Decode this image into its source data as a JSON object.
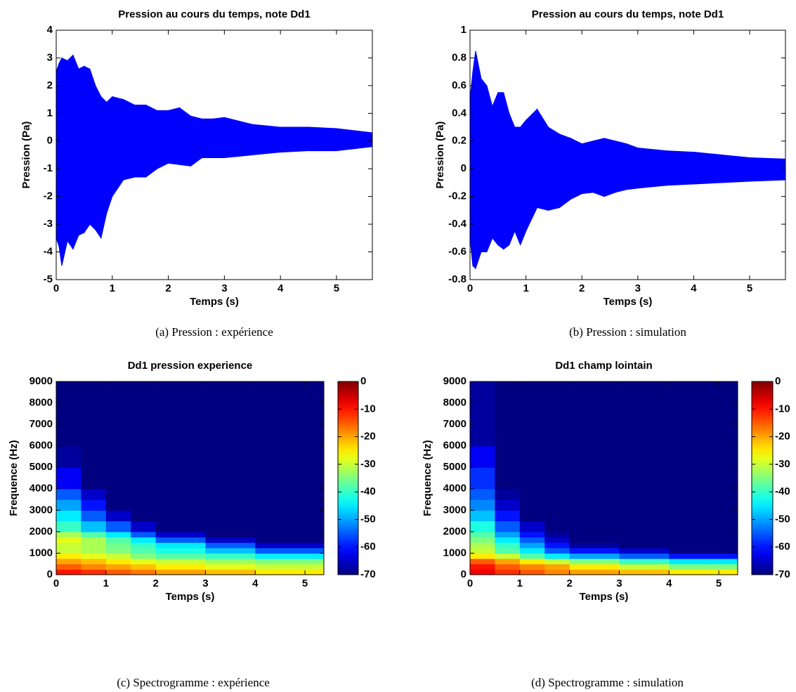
{
  "chart_data": [
    {
      "type": "band",
      "title": "Pression au cours du temps, note Dd1",
      "xlabel": "Temps (s)",
      "ylabel": "Pression (Pa)",
      "caption": "(a) Pression : expérience",
      "color": "#0000ff",
      "x": [
        0,
        0.05,
        0.1,
        0.2,
        0.3,
        0.4,
        0.5,
        0.6,
        0.7,
        0.8,
        0.9,
        1.0,
        1.2,
        1.4,
        1.6,
        1.8,
        2.0,
        2.2,
        2.4,
        2.6,
        2.8,
        3.0,
        3.5,
        4.0,
        4.5,
        5.0,
        5.64
      ],
      "upper": [
        2.5,
        2.8,
        3.0,
        2.9,
        3.1,
        2.6,
        2.7,
        2.6,
        2.0,
        1.6,
        1.4,
        1.6,
        1.5,
        1.3,
        1.3,
        1.1,
        1.1,
        1.2,
        0.9,
        0.8,
        0.8,
        0.85,
        0.6,
        0.5,
        0.5,
        0.45,
        0.3
      ],
      "lower": [
        -3.5,
        -3.8,
        -4.5,
        -3.6,
        -3.9,
        -3.4,
        -3.3,
        -3.0,
        -3.2,
        -3.5,
        -2.6,
        -2.0,
        -1.4,
        -1.3,
        -1.3,
        -1.0,
        -0.8,
        -0.85,
        -0.9,
        -0.6,
        -0.6,
        -0.6,
        -0.5,
        -0.4,
        -0.35,
        -0.35,
        -0.2
      ],
      "xlim": [
        0,
        5.64
      ],
      "ylim": [
        -5,
        4
      ],
      "xticks": [
        0,
        1,
        2,
        3,
        4,
        5
      ],
      "yticks": [
        -5,
        -4,
        -3,
        -2,
        -1,
        0,
        1,
        2,
        3,
        4
      ]
    },
    {
      "type": "band",
      "title": "Pression au cours du temps, note Dd1",
      "xlabel": "Temps (s)",
      "ylabel": "Pression (Pa)",
      "caption": "(b) Pression : simulation",
      "color": "#0000ff",
      "x": [
        0,
        0.05,
        0.1,
        0.2,
        0.3,
        0.4,
        0.5,
        0.6,
        0.7,
        0.8,
        0.9,
        1.0,
        1.2,
        1.4,
        1.6,
        1.8,
        2.0,
        2.2,
        2.4,
        2.6,
        2.8,
        3.0,
        3.5,
        4.0,
        4.5,
        5.0,
        5.64
      ],
      "upper": [
        0.5,
        0.7,
        0.85,
        0.65,
        0.6,
        0.45,
        0.55,
        0.55,
        0.4,
        0.3,
        0.3,
        0.35,
        0.43,
        0.3,
        0.25,
        0.22,
        0.18,
        0.2,
        0.22,
        0.2,
        0.18,
        0.15,
        0.13,
        0.12,
        0.1,
        0.08,
        0.07
      ],
      "lower": [
        -0.5,
        -0.7,
        -0.72,
        -0.6,
        -0.6,
        -0.5,
        -0.55,
        -0.58,
        -0.55,
        -0.45,
        -0.55,
        -0.45,
        -0.28,
        -0.3,
        -0.28,
        -0.22,
        -0.18,
        -0.17,
        -0.2,
        -0.17,
        -0.15,
        -0.14,
        -0.12,
        -0.11,
        -0.1,
        -0.09,
        -0.08
      ],
      "xlim": [
        0,
        5.64
      ],
      "ylim": [
        -0.8,
        1
      ],
      "xticks": [
        0,
        1,
        2,
        3,
        4,
        5
      ],
      "yticks": [
        -0.8,
        -0.6,
        -0.4,
        -0.2,
        0,
        0.2,
        0.4,
        0.6,
        0.8,
        1
      ]
    },
    {
      "type": "heatmap",
      "title": "Dd1 pression  experience",
      "xlabel": "Temps (s)",
      "ylabel": "Frequence (Hz)",
      "caption": "(c) Spectrogramme : expérience",
      "colormap": "jet",
      "x_edges": [
        0,
        0.5,
        1,
        1.5,
        2,
        3,
        4,
        5.38
      ],
      "y_edges": [
        0,
        250,
        500,
        750,
        1000,
        1250,
        1500,
        1750,
        2000,
        2500,
        3000,
        3500,
        4000,
        5000,
        6000,
        9000
      ],
      "z": [
        [
          -10,
          -12,
          -15,
          -17,
          -20,
          -22,
          -25
        ],
        [
          -15,
          -18,
          -20,
          -22,
          -25,
          -28,
          -30
        ],
        [
          -20,
          -22,
          -25,
          -28,
          -30,
          -33,
          -35
        ],
        [
          -25,
          -28,
          -30,
          -35,
          -38,
          -40,
          -45
        ],
        [
          -30,
          -32,
          -35,
          -38,
          -42,
          -48,
          -55
        ],
        [
          -30,
          -32,
          -36,
          -40,
          -45,
          -55,
          -65
        ],
        [
          -28,
          -32,
          -38,
          -45,
          -55,
          -65,
          -70
        ],
        [
          -32,
          -38,
          -45,
          -55,
          -65,
          -70,
          -70
        ],
        [
          -40,
          -48,
          -55,
          -65,
          -70,
          -70,
          -70
        ],
        [
          -45,
          -55,
          -65,
          -70,
          -70,
          -70,
          -70
        ],
        [
          -50,
          -60,
          -70,
          -70,
          -70,
          -70,
          -70
        ],
        [
          -55,
          -65,
          -70,
          -70,
          -70,
          -70,
          -70
        ],
        [
          -62,
          -70,
          -70,
          -70,
          -70,
          -70,
          -70
        ],
        [
          -68,
          -70,
          -70,
          -70,
          -70,
          -70,
          -70
        ],
        [
          -70,
          -70,
          -70,
          -70,
          -70,
          -70,
          -70
        ]
      ],
      "xlim": [
        0,
        5.38
      ],
      "ylim": [
        0,
        9000
      ],
      "xticks": [
        0,
        1,
        2,
        3,
        4,
        5
      ],
      "yticks": [
        0,
        1000,
        2000,
        3000,
        4000,
        5000,
        6000,
        7000,
        8000,
        9000
      ],
      "clim": [
        -70,
        0
      ],
      "cticks": [
        -70,
        -60,
        -50,
        -40,
        -30,
        -20,
        -10,
        0
      ]
    },
    {
      "type": "heatmap",
      "title": "Dd1 champ lointain",
      "xlabel": "Temps (s)",
      "ylabel": "Frequence (Hz)",
      "caption": "(d) Spectrogramme : simulation",
      "colormap": "jet",
      "x_edges": [
        0,
        0.5,
        1,
        1.5,
        2,
        3,
        4,
        5.38
      ],
      "y_edges": [
        0,
        250,
        500,
        750,
        1000,
        1250,
        1500,
        1750,
        2000,
        2500,
        3000,
        3500,
        4000,
        5000,
        6000,
        9000
      ],
      "z": [
        [
          -8,
          -12,
          -15,
          -18,
          -20,
          -22,
          -25
        ],
        [
          -10,
          -15,
          -18,
          -20,
          -25,
          -30,
          -35
        ],
        [
          -15,
          -20,
          -25,
          -30,
          -35,
          -40,
          -45
        ],
        [
          -25,
          -30,
          -38,
          -45,
          -50,
          -55,
          -60
        ],
        [
          -30,
          -38,
          -45,
          -55,
          -60,
          -65,
          -70
        ],
        [
          -32,
          -40,
          -50,
          -60,
          -68,
          -70,
          -70
        ],
        [
          -35,
          -45,
          -55,
          -65,
          -70,
          -70,
          -70
        ],
        [
          -38,
          -50,
          -60,
          -68,
          -70,
          -70,
          -70
        ],
        [
          -42,
          -55,
          -65,
          -70,
          -70,
          -70,
          -70
        ],
        [
          -48,
          -60,
          -70,
          -70,
          -70,
          -70,
          -70
        ],
        [
          -52,
          -65,
          -70,
          -70,
          -70,
          -70,
          -70
        ],
        [
          -55,
          -68,
          -70,
          -70,
          -70,
          -70,
          -70
        ],
        [
          -58,
          -70,
          -70,
          -70,
          -70,
          -70,
          -70
        ],
        [
          -62,
          -70,
          -70,
          -70,
          -70,
          -70,
          -70
        ],
        [
          -68,
          -70,
          -70,
          -70,
          -70,
          -70,
          -70
        ]
      ],
      "xlim": [
        0,
        5.38
      ],
      "ylim": [
        0,
        9000
      ],
      "xticks": [
        0,
        1,
        2,
        3,
        4,
        5
      ],
      "yticks": [
        0,
        1000,
        2000,
        3000,
        4000,
        5000,
        6000,
        7000,
        8000,
        9000
      ],
      "clim": [
        -70,
        0
      ],
      "cticks": [
        -70,
        -60,
        -50,
        -40,
        -30,
        -20,
        -10,
        0
      ]
    }
  ]
}
